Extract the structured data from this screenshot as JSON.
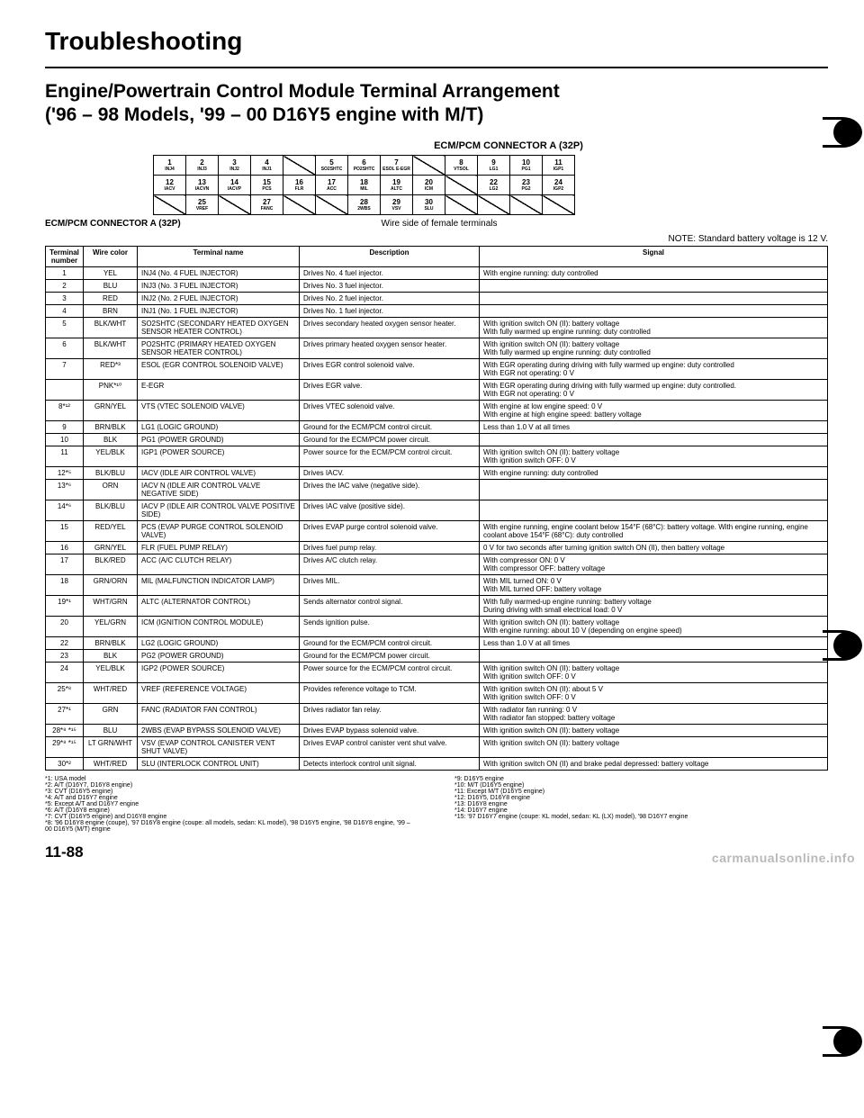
{
  "mainTitle": "Troubleshooting",
  "sectionTitle": "Engine/Powertrain Control Module Terminal Arrangement",
  "sectionSub": "('96 – 98 Models, '99 – 00 D16Y5 engine with M/T)",
  "connectorLabel": "ECM/PCM CONNECTOR A (32P)",
  "connectorCaptionLeft": "ECM/PCM CONNECTOR A (32P)",
  "connectorCaptionMid": "Wire side of female terminals",
  "noteLine": "NOTE: Standard battery voltage is 12 V.",
  "connector": {
    "rows": [
      [
        "1",
        "2",
        "3",
        "4",
        "",
        "5",
        "6",
        "7",
        "",
        "8",
        "9",
        "10",
        "11"
      ],
      [
        "INJ4",
        "INJ3",
        "INJ2",
        "INJ1",
        "",
        "SO2SHTC",
        "PO2SHTC",
        "ESOL\nE-EGR",
        "",
        "VTSOL",
        "LG1",
        "PG1",
        "IGP1"
      ],
      [
        "12",
        "13",
        "14",
        "15",
        "16",
        "17",
        "18",
        "19",
        "20",
        "",
        "22",
        "23",
        "24"
      ],
      [
        "IACV",
        "IACVN",
        "IACVP",
        "PCS",
        "FLR",
        "ACC",
        "MIL",
        "ALTC",
        "ICM",
        "",
        "LG2",
        "PG2",
        "IGP2"
      ],
      [
        "",
        "25",
        "",
        "27",
        "",
        "",
        "28",
        "29",
        "30",
        "",
        "",
        "",
        ""
      ],
      [
        "",
        "VREF",
        "",
        "FANC",
        "",
        "",
        "2WBS",
        "VSV",
        "SLU",
        "",
        "",
        "",
        ""
      ]
    ]
  },
  "headers": {
    "num": "Terminal number",
    "color": "Wire color",
    "name": "Terminal name",
    "desc": "Description",
    "signal": "Signal"
  },
  "rows": [
    {
      "n": "1",
      "c": "YEL",
      "name": "INJ4 (No. 4 FUEL INJECTOR)",
      "desc": "Drives No. 4 fuel injector.",
      "sig": "With engine running: duty controlled"
    },
    {
      "n": "2",
      "c": "BLU",
      "name": "INJ3 (No. 3 FUEL INJECTOR)",
      "desc": "Drives No. 3 fuel injector.",
      "sig": ""
    },
    {
      "n": "3",
      "c": "RED",
      "name": "INJ2 (No. 2 FUEL INJECTOR)",
      "desc": "Drives No. 2 fuel injector.",
      "sig": ""
    },
    {
      "n": "4",
      "c": "BRN",
      "name": "INJ1 (No. 1 FUEL INJECTOR)",
      "desc": "Drives No. 1 fuel injector.",
      "sig": ""
    },
    {
      "n": "5",
      "c": "BLK/WHT",
      "name": "SO2SHTC (SECONDARY HEATED OXYGEN SENSOR HEATER CONTROL)",
      "desc": "Drives secondary heated oxygen sensor heater.",
      "sig": "With ignition switch ON (II): battery voltage\nWith fully warmed up engine running: duty controlled"
    },
    {
      "n": "6",
      "c": "BLK/WHT",
      "name": "PO2SHTC (PRIMARY HEATED OXYGEN SENSOR HEATER CONTROL)",
      "desc": "Drives primary heated oxygen sensor heater.",
      "sig": "With ignition switch ON (II): battery voltage\nWith fully warmed up engine running: duty controlled"
    },
    {
      "n": "7",
      "c": "RED*³",
      "name": "ESOL (EGR CONTROL SOLENOID VALVE)",
      "desc": "Drives EGR control solenoid valve.",
      "sig": "With EGR operating during driving with fully warmed up engine: duty controlled\nWith EGR not operating: 0 V"
    },
    {
      "n": "",
      "c": "PNK*¹⁰",
      "name": "E-EGR",
      "desc": "Drives EGR valve.",
      "sig": "With EGR operating during driving with fully warmed up engine: duty controlled.\nWith EGR not operating: 0 V"
    },
    {
      "n": "8*¹²",
      "c": "GRN/YEL",
      "name": "VTS (VTEC SOLENOID VALVE)",
      "desc": "Drives VTEC solenoid valve.",
      "sig": "With engine at low engine speed: 0 V\nWith engine at high engine speed: battery voltage"
    },
    {
      "n": "9",
      "c": "BRN/BLK",
      "name": "LG1 (LOGIC GROUND)",
      "desc": "Ground for the ECM/PCM control circuit.",
      "sig": "Less than 1.0 V at all times"
    },
    {
      "n": "10",
      "c": "BLK",
      "name": "PG1 (POWER GROUND)",
      "desc": "Ground for the ECM/PCM power circuit.",
      "sig": ""
    },
    {
      "n": "11",
      "c": "YEL/BLK",
      "name": "IGP1 (POWER SOURCE)",
      "desc": "Power source for the ECM/PCM control circuit.",
      "sig": "With ignition switch ON (II): battery voltage\nWith ignition switch OFF: 0 V"
    },
    {
      "n": "12*⁵",
      "c": "BLK/BLU",
      "name": "IACV (IDLE AIR CONTROL VALVE)",
      "desc": "Drives IACV.",
      "sig": "With engine running: duty controlled"
    },
    {
      "n": "13*⁶",
      "c": "ORN",
      "name": "IACV N (IDLE AIR CONTROL VALVE NEGATIVE SIDE)",
      "desc": "Drives the IAC valve (negative side).",
      "sig": ""
    },
    {
      "n": "14*⁶",
      "c": "BLK/BLU",
      "name": "IACV P (IDLE AIR CONTROL VALVE POSITIVE SIDE)",
      "desc": "Drives IAC valve (positive side).",
      "sig": ""
    },
    {
      "n": "15",
      "c": "RED/YEL",
      "name": "PCS (EVAP PURGE CONTROL SOLENOID VALVE)",
      "desc": "Drives EVAP purge control solenoid valve.",
      "sig": "With engine running, engine coolant below 154°F (68°C): battery voltage. With engine running, engine coolant above 154°F (68°C): duty controlled"
    },
    {
      "n": "16",
      "c": "GRN/YEL",
      "name": "FLR (FUEL PUMP RELAY)",
      "desc": "Drives fuel pump relay.",
      "sig": "0 V for two seconds after turning ignition switch ON (II), then battery voltage"
    },
    {
      "n": "17",
      "c": "BLK/RED",
      "name": "ACC (A/C CLUTCH RELAY)",
      "desc": "Drives A/C clutch relay.",
      "sig": "With compressor ON: 0 V\nWith compressor OFF: battery voltage"
    },
    {
      "n": "18",
      "c": "GRN/ORN",
      "name": "MIL (MALFUNCTION INDICATOR LAMP)",
      "desc": "Drives MIL.",
      "sig": "With MIL turned ON: 0 V\nWith MIL turned OFF: battery voltage"
    },
    {
      "n": "19*¹",
      "c": "WHT/GRN",
      "name": "ALTC (ALTERNATOR CONTROL)",
      "desc": "Sends alternator control signal.",
      "sig": "With fully warmed-up engine running: battery voltage\nDuring driving with small electrical load: 0 V"
    },
    {
      "n": "20",
      "c": "YEL/GRN",
      "name": "ICM (IGNITION CONTROL MODULE)",
      "desc": "Sends ignition pulse.",
      "sig": "With ignition switch ON (II): battery voltage\nWith engine running: about 10 V (depending on engine speed)"
    },
    {
      "n": "22",
      "c": "BRN/BLK",
      "name": "LG2 (LOGIC GROUND)",
      "desc": "Ground for the ECM/PCM control circuit.",
      "sig": "Less than 1.0 V at all times"
    },
    {
      "n": "23",
      "c": "BLK",
      "name": "PG2 (POWER GROUND)",
      "desc": "Ground for the ECM/PCM power circuit.",
      "sig": ""
    },
    {
      "n": "24",
      "c": "YEL/BLK",
      "name": "IGP2 (POWER SOURCE)",
      "desc": "Power source for the ECM/PCM control circuit.",
      "sig": "With ignition switch ON (II): battery voltage\nWith ignition switch OFF: 0 V"
    },
    {
      "n": "25*⁸",
      "c": "WHT/RED",
      "name": "VREF (REFERENCE VOLTAGE)",
      "desc": "Provides reference voltage to TCM.",
      "sig": "With ignition switch ON (II): about 5 V\nWith ignition switch OFF: 0 V"
    },
    {
      "n": "27*¹",
      "c": "GRN",
      "name": "FANC (RADIATOR FAN CONTROL)",
      "desc": "Drives radiator fan relay.",
      "sig": "With radiator fan running: 0 V\nWith radiator fan stopped: battery voltage"
    },
    {
      "n": "28*⁸ *¹⁵",
      "c": "BLU",
      "name": "2WBS (EVAP BYPASS SOLENOID VALVE)",
      "desc": "Drives EVAP bypass solenoid valve.",
      "sig": "With ignition switch ON (II): battery voltage"
    },
    {
      "n": "29*⁸ *¹⁵",
      "c": "LT GRN/WHT",
      "name": "VSV (EVAP CONTROL CANISTER VENT SHUT VALVE)",
      "desc": "Drives EVAP control canister vent shut valve.",
      "sig": "With ignition switch ON (II): battery voltage"
    },
    {
      "n": "30*²",
      "c": "WHT/RED",
      "name": "SLU (INTERLOCK CONTROL UNIT)",
      "desc": "Detects interlock control unit signal.",
      "sig": "With ignition switch ON (II) and brake pedal depressed: battery voltage"
    }
  ],
  "footnotesLeft": [
    "*1: USA model",
    "*2: A/T (D16Y7, D16Y8 engine)",
    "*3: CVT (D16Y5 engine)",
    "*4: A/T and D16Y7 engine",
    "*5: Except A/T and D16Y7 engine",
    "*6: A/T (D16Y8 engine)",
    "*7: CVT (D16Y5 engine) and D16Y8 engine",
    "*8: '96 D16Y8 engine (coupe), '97 D16Y8 engine (coupe: all models, sedan: KL model), '98 D16Y5 engine, '98 D16Y8 engine, '99 – 00 D16Y5 (M/T) engine"
  ],
  "footnotesRight": [
    "*9: D16Y5 engine",
    "*10: M/T (D16Y5 engine)",
    "*11: Except M/T (D16Y5 engine)",
    "*12: D16Y5, D16Y8 engine",
    "*13: D16Y8 engine",
    "*14: D16Y7 engine",
    "*15: '97 D16Y7 engine (coupe: KL model, sedan: KL (LX) model), '98 D16Y7 engine"
  ],
  "pageNum": "11-88",
  "watermark": "carmanualsonline.info"
}
